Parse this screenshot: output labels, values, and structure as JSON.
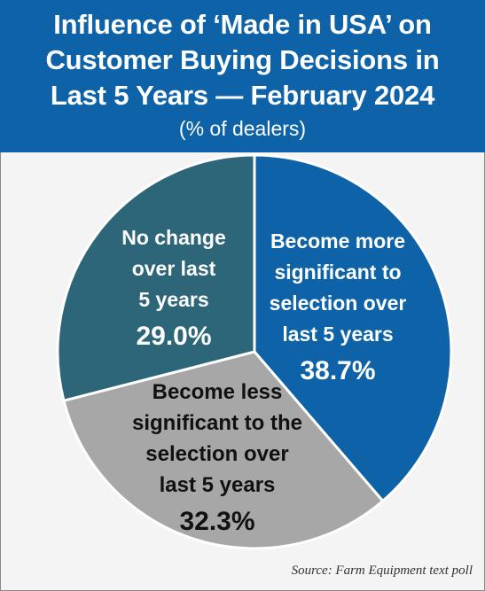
{
  "header": {
    "title": "Influence of ‘Made in USA’ on\nCustomer Buying Decisions in\nLast 5 Years — February 2024",
    "subtitle": "(% of dealers)"
  },
  "source": "Source: Farm Equipment text poll",
  "colors": {
    "header_bg": "#0e63a8",
    "more_significant": "#0e63a8",
    "less_significant": "#a7a7a7",
    "no_change": "#2c6678"
  },
  "chart_data": {
    "type": "pie",
    "title": "Influence of ‘Made in USA’ on Customer Buying Decisions in Last 5 Years — February 2024",
    "subtitle": "(% of dealers)",
    "slices": [
      {
        "label": "Become more significant to selection over last 5 years",
        "label_lines": [
          "Become more",
          "significant to",
          "selection over",
          "last 5 years"
        ],
        "value": 38.7,
        "value_text": "38.7%",
        "color": "#0e63a8",
        "text_color": "#ffffff"
      },
      {
        "label": "Become less significant to the selection over last 5 years",
        "label_lines": [
          "Become less",
          "significant to the",
          "selection over",
          "last 5 years"
        ],
        "value": 32.3,
        "value_text": "32.3%",
        "color": "#a7a7a7",
        "text_color": "#111111"
      },
      {
        "label": "No change over last 5 years",
        "label_lines": [
          "No change",
          "over last",
          "5 years"
        ],
        "value": 29.0,
        "value_text": "29.0%",
        "color": "#2c6678",
        "text_color": "#ffffff"
      }
    ]
  }
}
